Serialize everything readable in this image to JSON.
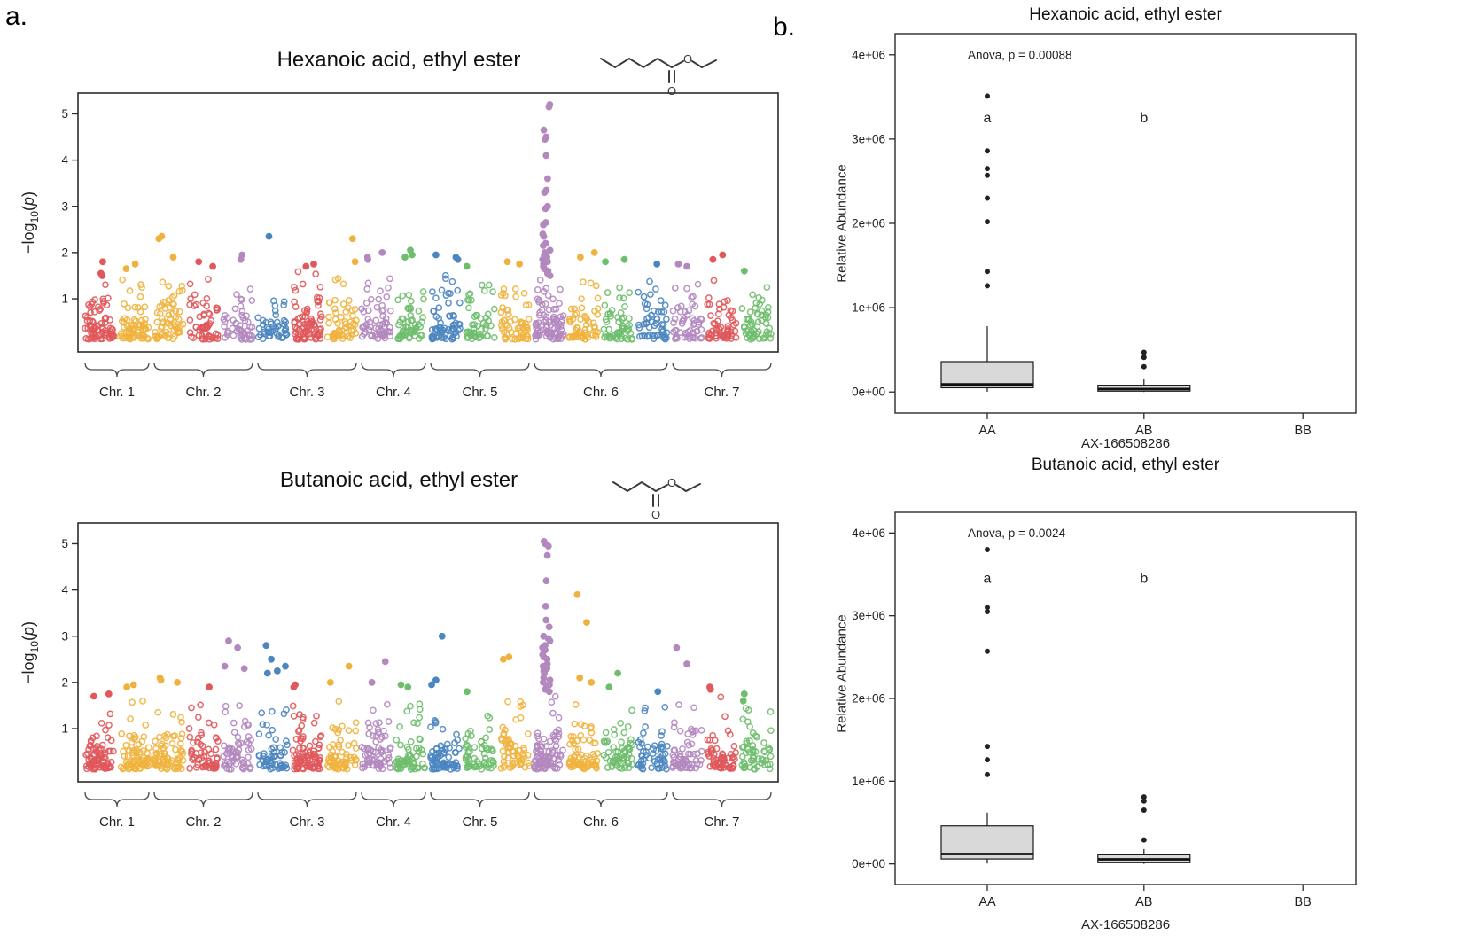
{
  "panel_labels": {
    "a": "a.",
    "b": "b."
  },
  "molecule": {
    "oxygen": "O"
  },
  "palette": {
    "red": "#E0585B",
    "yellow": "#EFB23E",
    "green": "#6FBE6E",
    "purple": "#B388BF",
    "blue": "#4C86C0"
  },
  "chart_data": [
    {
      "type": "scatter",
      "variant": "manhattan",
      "title": "Hexanoic acid, ethyl ester",
      "ylabel_parts": {
        "pre": "−log",
        "sub": "10",
        "open": "(",
        "var": "p",
        "close": ")"
      },
      "yticks": [
        1,
        2,
        3,
        4,
        5
      ],
      "ylim": [
        -0.15,
        5.45
      ],
      "peak_note": "strongest association on Chr. 6, -log10(p) ~ 5.2",
      "chromosomes": [
        {
          "label": "Chr. 1",
          "segments": [
            {
              "color": "red",
              "n": 75,
              "base_max": 1.45,
              "extras": [
                1.8,
                1.55,
                1.5
              ]
            },
            {
              "color": "yellow",
              "n": 65,
              "base_max": 1.5,
              "extras": [
                1.75,
                1.65
              ]
            }
          ]
        },
        {
          "label": "Chr. 2",
          "segments": [
            {
              "color": "yellow",
              "n": 60,
              "base_max": 1.5,
              "extras": [
                2.35,
                2.3,
                1.9
              ]
            },
            {
              "color": "red",
              "n": 55,
              "base_max": 1.45,
              "extras": [
                1.8,
                1.7
              ]
            },
            {
              "color": "purple",
              "n": 50,
              "base_max": 1.4,
              "extras": [
                1.95,
                1.85
              ]
            }
          ]
        },
        {
          "label": "Chr. 3",
          "segments": [
            {
              "color": "blue",
              "n": 45,
              "base_max": 1.3,
              "extras": [
                2.35
              ]
            },
            {
              "color": "red",
              "n": 80,
              "base_max": 1.6,
              "extras": [
                1.75,
                1.7
              ]
            },
            {
              "color": "yellow",
              "n": 55,
              "base_max": 1.5,
              "extras": [
                2.3,
                1.8
              ]
            }
          ]
        },
        {
          "label": "Chr. 4",
          "segments": [
            {
              "color": "purple",
              "n": 60,
              "base_max": 1.5,
              "extras": [
                2.0,
                1.9,
                1.85
              ]
            },
            {
              "color": "green",
              "n": 55,
              "base_max": 1.4,
              "extras": [
                2.05,
                1.95,
                1.9
              ]
            }
          ]
        },
        {
          "label": "Chr. 5",
          "segments": [
            {
              "color": "blue",
              "n": 65,
              "base_max": 1.6,
              "extras": [
                1.95,
                1.9,
                1.85
              ]
            },
            {
              "color": "green",
              "n": 50,
              "base_max": 1.35,
              "extras": [
                1.7
              ]
            },
            {
              "color": "yellow",
              "n": 55,
              "base_max": 1.5,
              "extras": [
                1.8,
                1.75
              ]
            }
          ]
        },
        {
          "label": "Chr. 6",
          "segments": [
            {
              "color": "purple",
              "n": 85,
              "base_max": 1.7,
              "column": true,
              "extras": [
                5.2,
                5.15,
                4.65,
                4.5,
                4.45,
                4.1,
                3.6,
                3.35,
                3.3,
                3.0,
                2.95,
                2.65,
                2.6,
                2.4,
                2.35,
                2.2,
                2.15,
                2.05,
                2.0,
                1.95,
                1.9,
                1.85,
                1.8,
                1.75,
                1.7,
                1.65,
                1.6,
                1.55,
                1.5
              ]
            },
            {
              "color": "yellow",
              "n": 60,
              "base_max": 1.5,
              "extras": [
                2.0,
                1.9
              ]
            },
            {
              "color": "green",
              "n": 55,
              "base_max": 1.45,
              "extras": [
                1.85,
                1.8
              ]
            },
            {
              "color": "blue",
              "n": 50,
              "base_max": 1.4,
              "extras": [
                1.75
              ]
            }
          ]
        },
        {
          "label": "Chr. 7",
          "segments": [
            {
              "color": "purple",
              "n": 55,
              "base_max": 1.45,
              "extras": [
                1.75,
                1.7
              ]
            },
            {
              "color": "red",
              "n": 60,
              "base_max": 1.5,
              "extras": [
                1.95,
                1.85
              ]
            },
            {
              "color": "green",
              "n": 55,
              "base_max": 1.4,
              "extras": [
                1.6
              ]
            }
          ]
        }
      ]
    },
    {
      "type": "scatter",
      "variant": "manhattan",
      "title": "Butanoic acid, ethyl ester",
      "ylabel_parts": {
        "pre": "−log",
        "sub": "10",
        "open": "(",
        "var": "p",
        "close": ")"
      },
      "yticks": [
        1,
        2,
        3,
        4,
        5
      ],
      "ylim": [
        -0.15,
        5.45
      ],
      "peak_note": "strongest association on Chr. 6, -log10(p) ~ 5.05",
      "chromosomes": [
        {
          "label": "Chr. 1",
          "segments": [
            {
              "color": "red",
              "n": 80,
              "base_max": 1.6,
              "extras": [
                1.75,
                1.7
              ]
            },
            {
              "color": "yellow",
              "n": 70,
              "base_max": 1.7,
              "extras": [
                1.95,
                1.9
              ]
            }
          ]
        },
        {
          "label": "Chr. 2",
          "segments": [
            {
              "color": "yellow",
              "n": 70,
              "base_max": 1.8,
              "extras": [
                2.1,
                2.05,
                2.0
              ]
            },
            {
              "color": "red",
              "n": 60,
              "base_max": 1.6,
              "extras": [
                1.9
              ]
            },
            {
              "color": "purple",
              "n": 60,
              "base_max": 1.7,
              "extras": [
                2.9,
                2.75,
                2.35,
                2.3
              ]
            }
          ]
        },
        {
          "label": "Chr. 3",
          "segments": [
            {
              "color": "blue",
              "n": 55,
              "base_max": 1.6,
              "extras": [
                2.8,
                2.5,
                2.35,
                2.25,
                2.2
              ]
            },
            {
              "color": "red",
              "n": 85,
              "base_max": 1.8,
              "extras": [
                1.95,
                1.9
              ]
            },
            {
              "color": "yellow",
              "n": 60,
              "base_max": 1.7,
              "extras": [
                2.35,
                2.0
              ]
            }
          ]
        },
        {
          "label": "Chr. 4",
          "segments": [
            {
              "color": "purple",
              "n": 65,
              "base_max": 1.7,
              "extras": [
                2.45,
                2.0
              ]
            },
            {
              "color": "green",
              "n": 60,
              "base_max": 1.6,
              "extras": [
                1.95,
                1.9
              ]
            }
          ]
        },
        {
          "label": "Chr. 5",
          "segments": [
            {
              "color": "blue",
              "n": 70,
              "base_max": 1.7,
              "extras": [
                3.0,
                2.05,
                1.95
              ]
            },
            {
              "color": "green",
              "n": 55,
              "base_max": 1.5,
              "extras": [
                1.8
              ]
            },
            {
              "color": "yellow",
              "n": 60,
              "base_max": 1.7,
              "extras": [
                2.55,
                2.5
              ]
            }
          ]
        },
        {
          "label": "Chr. 6",
          "segments": [
            {
              "color": "purple",
              "n": 90,
              "base_max": 1.9,
              "column": true,
              "extras": [
                5.05,
                5.0,
                4.95,
                4.75,
                4.2,
                3.65,
                3.35,
                3.2,
                3.0,
                2.95,
                2.9,
                2.8,
                2.75,
                2.7,
                2.6,
                2.55,
                2.5,
                2.4,
                2.35,
                2.3,
                2.25,
                2.2,
                2.1,
                2.05,
                2.0,
                1.95,
                1.9,
                1.85,
                1.8
              ]
            },
            {
              "color": "yellow",
              "n": 65,
              "base_max": 1.8,
              "extras": [
                3.9,
                3.3,
                2.1,
                2.0
              ]
            },
            {
              "color": "green",
              "n": 60,
              "base_max": 1.6,
              "extras": [
                2.2,
                1.9
              ]
            },
            {
              "color": "blue",
              "n": 55,
              "base_max": 1.6,
              "extras": [
                1.8
              ]
            }
          ]
        },
        {
          "label": "Chr. 7",
          "segments": [
            {
              "color": "purple",
              "n": 60,
              "base_max": 1.6,
              "extras": [
                2.75,
                2.4
              ]
            },
            {
              "color": "red",
              "n": 60,
              "base_max": 1.7,
              "extras": [
                1.9,
                1.85
              ]
            },
            {
              "color": "green",
              "n": 55,
              "base_max": 1.5,
              "extras": [
                1.75,
                1.6
              ]
            }
          ]
        }
      ]
    },
    {
      "type": "box",
      "title": "Hexanoic acid, ethyl ester",
      "anova": "Anova, p = 0.00088",
      "anova_y": 3950000,
      "ylabel": "Relative Abundance",
      "xlabel": "AX-166508286",
      "yticks": [
        {
          "value": 0,
          "label": "0e+00"
        },
        {
          "value": 1000000,
          "label": "1e+06"
        },
        {
          "value": 2000000,
          "label": "2e+06"
        },
        {
          "value": 3000000,
          "label": "3e+06"
        },
        {
          "value": 4000000,
          "label": "4e+06"
        }
      ],
      "ylim": [
        -250000,
        4250000
      ],
      "groups": [
        {
          "label": "AA",
          "letter": "a",
          "letter_y": 3250000,
          "box": {
            "whisker_low": 2000,
            "q1": 50000,
            "median": 90000,
            "q3": 360000,
            "whisker_high": 780000
          },
          "outliers": [
            1260000,
            1430000,
            2020000,
            2300000,
            2570000,
            2650000,
            2860000,
            3510000
          ]
        },
        {
          "label": "AB",
          "letter": "b",
          "letter_y": 3250000,
          "box": {
            "whisker_low": 0,
            "q1": 10000,
            "median": 35000,
            "q3": 80000,
            "whisker_high": 150000
          },
          "outliers": [
            300000,
            410000,
            470000
          ]
        },
        {
          "label": "BB",
          "letter": "",
          "letter_y": null,
          "box": null,
          "outliers": []
        }
      ]
    },
    {
      "type": "box",
      "title": "Butanoic acid, ethyl ester",
      "anova": "Anova, p = 0.0024",
      "anova_y": 3950000,
      "ylabel": "Relative Abundance",
      "xlabel": "AX-166508286",
      "yticks": [
        {
          "value": 0,
          "label": "0e+00"
        },
        {
          "value": 1000000,
          "label": "1e+06"
        },
        {
          "value": 2000000,
          "label": "2e+06"
        },
        {
          "value": 3000000,
          "label": "3e+06"
        },
        {
          "value": 4000000,
          "label": "4e+06"
        }
      ],
      "ylim": [
        -250000,
        4250000
      ],
      "groups": [
        {
          "label": "AA",
          "letter": "a",
          "letter_y": 3450000,
          "box": {
            "whisker_low": 5000,
            "q1": 60000,
            "median": 120000,
            "q3": 460000,
            "whisker_high": 620000
          },
          "outliers": [
            1080000,
            1260000,
            1420000,
            2570000,
            3050000,
            3100000,
            3800000
          ]
        },
        {
          "label": "AB",
          "letter": "b",
          "letter_y": 3450000,
          "box": {
            "whisker_low": 0,
            "q1": 15000,
            "median": 55000,
            "q3": 110000,
            "whisker_high": 180000
          },
          "outliers": [
            290000,
            650000,
            760000,
            810000
          ]
        },
        {
          "label": "BB",
          "letter": "",
          "letter_y": null,
          "box": null,
          "outliers": []
        }
      ]
    }
  ]
}
